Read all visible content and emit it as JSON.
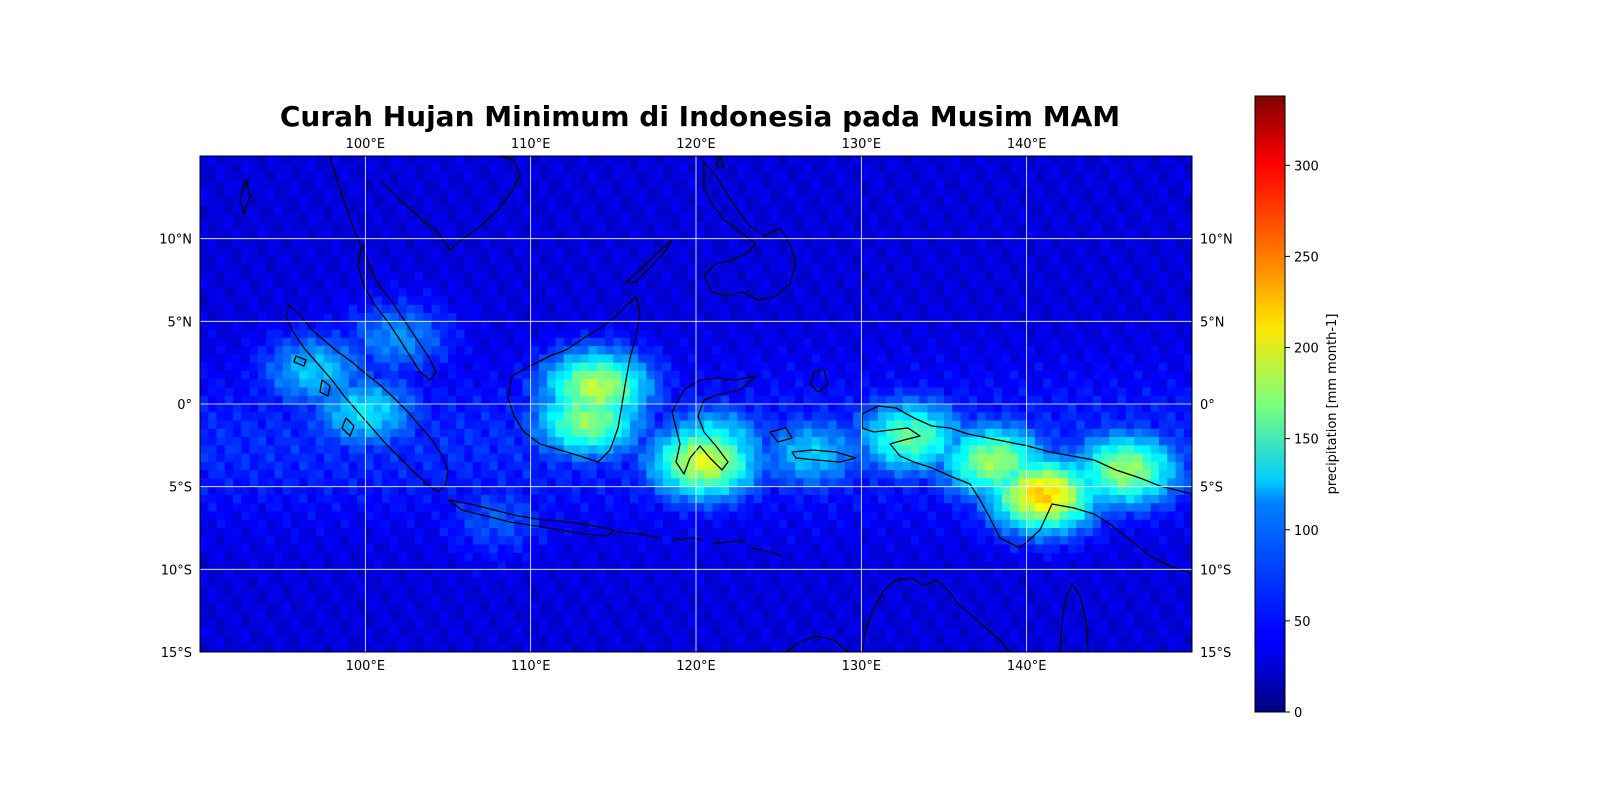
{
  "title": "Curah Hujan Minimum di Indonesia pada Musim MAM",
  "map": {
    "extent_lon": [
      90,
      150
    ],
    "extent_lat": [
      -15,
      15
    ],
    "lon_ticks": [
      {
        "value": 100,
        "label": "100°E"
      },
      {
        "value": 110,
        "label": "110°E"
      },
      {
        "value": 120,
        "label": "120°E"
      },
      {
        "value": 130,
        "label": "130°E"
      },
      {
        "value": 140,
        "label": "140°E"
      }
    ],
    "lat_ticks": [
      {
        "value": 10,
        "label": "10°N"
      },
      {
        "value": 5,
        "label": "5°N"
      },
      {
        "value": 0,
        "label": "0°"
      },
      {
        "value": -5,
        "label": "5°S"
      },
      {
        "value": -10,
        "label": "10°S"
      },
      {
        "value": -15,
        "label": "15°S"
      }
    ],
    "gridlines": true,
    "coastline_color": "#000000",
    "gridline_color": "#ffffff"
  },
  "colorbar": {
    "label": "precipitation [mm month-1]",
    "min": 0,
    "max": 338,
    "colormap": "jet",
    "ticks": [
      {
        "value": 0,
        "label": "0"
      },
      {
        "value": 50,
        "label": "50"
      },
      {
        "value": 100,
        "label": "100"
      },
      {
        "value": 150,
        "label": "150"
      },
      {
        "value": 200,
        "label": "200"
      },
      {
        "value": 250,
        "label": "250"
      },
      {
        "value": 300,
        "label": "300"
      }
    ]
  },
  "precipitation_field": {
    "background_value": 30,
    "features": [
      {
        "name": "Sumatra",
        "lon": 100,
        "lat": -0.5,
        "value": 120
      },
      {
        "name": "Sumatra west coast",
        "lon": 97,
        "lat": 2,
        "value": 110
      },
      {
        "name": "Malay Peninsula",
        "lon": 102,
        "lat": 4,
        "value": 90
      },
      {
        "name": "Borneo",
        "lon": 113.5,
        "lat": -1,
        "value": 175
      },
      {
        "name": "Borneo south",
        "lon": 114,
        "lat": 1,
        "value": 190
      },
      {
        "name": "Sulawesi",
        "lon": 121,
        "lat": -2.5,
        "value": 140
      },
      {
        "name": "Sulawesi central peak",
        "lon": 120.5,
        "lat": -3.5,
        "value": 200
      },
      {
        "name": "Maluku",
        "lon": 127,
        "lat": -3,
        "value": 110
      },
      {
        "name": "Western New Guinea",
        "lon": 133,
        "lat": -2,
        "value": 160
      },
      {
        "name": "New Guinea central",
        "lon": 138,
        "lat": -3.5,
        "value": 180
      },
      {
        "name": "New Guinea highlands",
        "lon": 141,
        "lat": -5.5,
        "value": 230
      },
      {
        "name": "New Guinea east",
        "lon": 146,
        "lat": -4,
        "value": 180
      },
      {
        "name": "Java",
        "lon": 108,
        "lat": -7,
        "value": 70
      },
      {
        "name": "ITCZ band",
        "lon": 120,
        "lat": -4,
        "value": 80
      }
    ]
  }
}
